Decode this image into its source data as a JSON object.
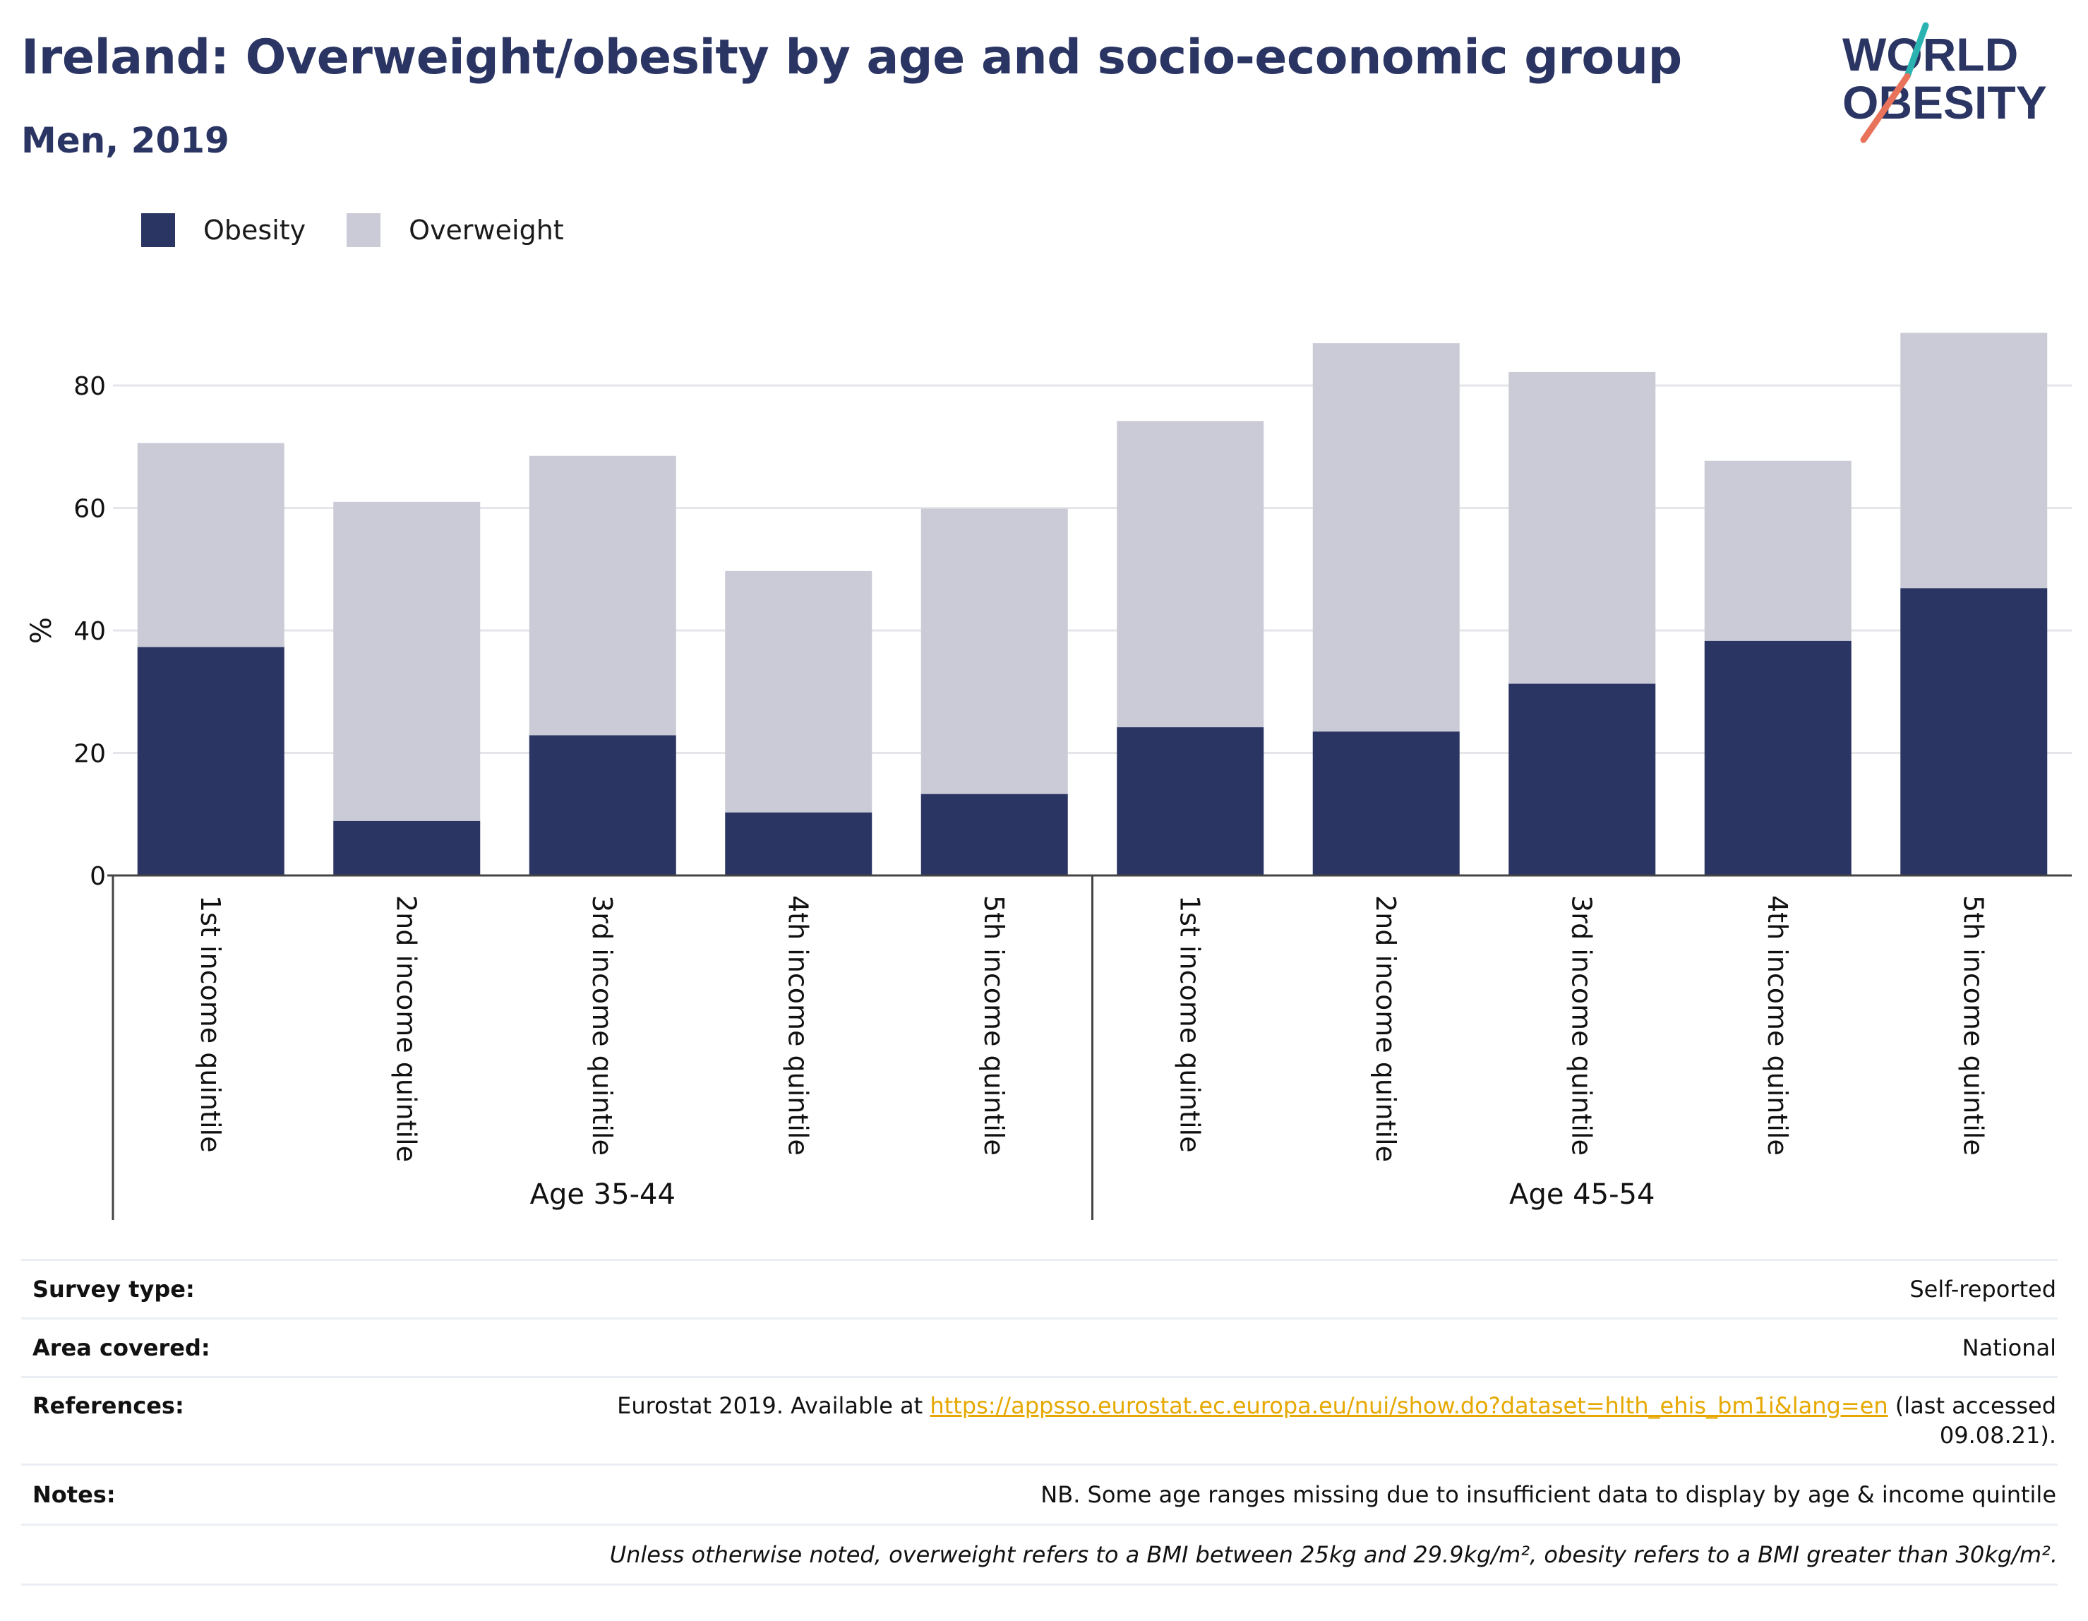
{
  "header": {
    "title": "Ireland: Overweight/obesity by age and socio-economic group",
    "subtitle": "Men, 2019"
  },
  "logo": {
    "line1": "WORLD",
    "line2": "OBESITY"
  },
  "colors": {
    "obesity": "#2b3563",
    "overweight": "#cacbd6",
    "accent_teal": "#2ab3b1",
    "accent_coral": "#e8735a",
    "link": "#e6a800"
  },
  "chart_data": {
    "type": "bar",
    "stacked": true,
    "ylabel": "%",
    "ylim": [
      0,
      90
    ],
    "yticks": [
      0,
      20,
      40,
      60,
      80
    ],
    "grid": true,
    "legend_position": "top-left",
    "categories": [
      "1st income quintile",
      "2nd income quintile",
      "3rd income quintile",
      "4th income quintile",
      "5th income quintile",
      "1st income quintile",
      "2nd income quintile",
      "3rd income quintile",
      "4th income quintile",
      "5th income quintile"
    ],
    "groups": [
      {
        "label": "Age 35-44",
        "count": 5
      },
      {
        "label": "Age 45-54",
        "count": 5
      }
    ],
    "series": [
      {
        "name": "Obesity",
        "values": [
          37.3,
          8.9,
          22.9,
          10.3,
          13.3,
          24.2,
          23.5,
          31.3,
          38.3,
          46.9
        ]
      },
      {
        "name": "Overweight",
        "values": [
          33.3,
          52.1,
          45.6,
          39.4,
          46.6,
          50.0,
          63.4,
          50.9,
          29.4,
          41.7
        ]
      }
    ]
  },
  "info": {
    "survey_type_label": "Survey type:",
    "survey_type_value": "Self-reported",
    "area_label": "Area covered:",
    "area_value": "National",
    "references_label": "References:",
    "references_prefix": "Eurostat 2019. Available at ",
    "references_link": "https://appsso.eurostat.ec.europa.eu/nui/show.do?dataset=hlth_ehis_bm1i&lang=en",
    "references_suffix": " (last accessed 09.08.21).",
    "notes_label": "Notes:",
    "notes_value": "NB. Some age ranges missing due to insufficient data to display by age & income quintile",
    "footnote": "Unless otherwise noted, overweight refers to a BMI between 25kg and 29.9kg/m², obesity refers to a BMI greater than 30kg/m²."
  }
}
